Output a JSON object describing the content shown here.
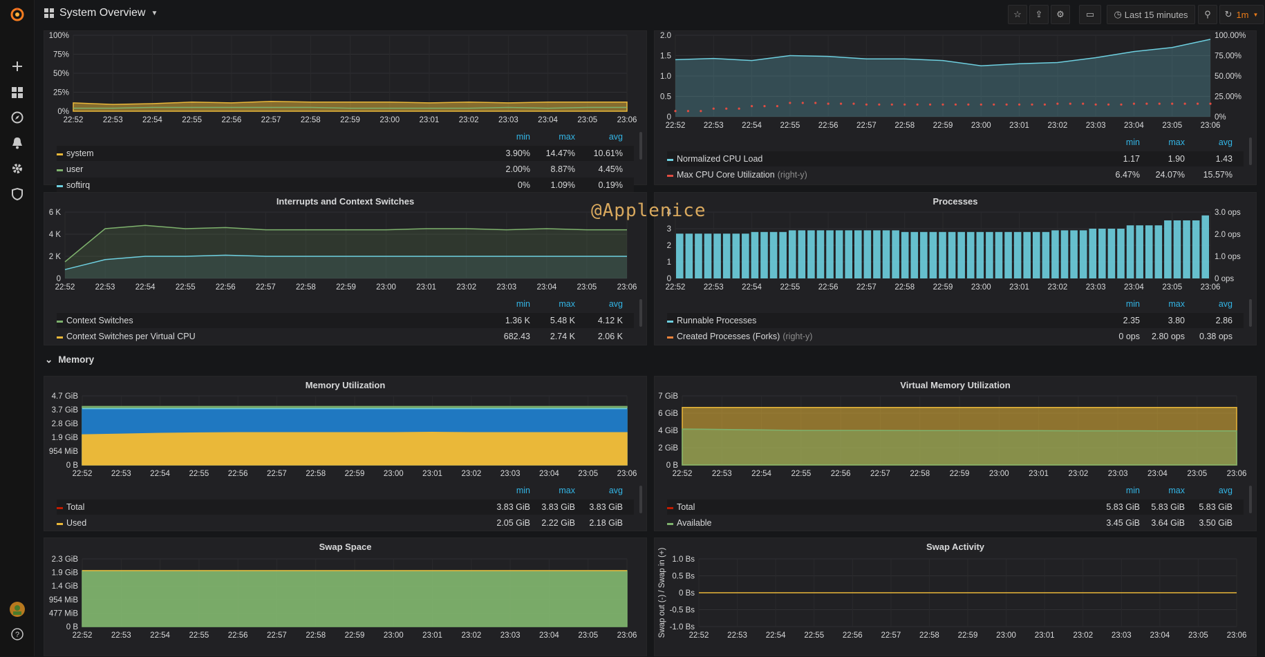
{
  "dashboard": {
    "title": "System Overview"
  },
  "toolbar": {
    "time_range": "Last 15 minutes",
    "refresh": "1m"
  },
  "watermark": "@Applenice",
  "row": {
    "memory": "Memory"
  },
  "ticks": [
    "22:52",
    "22:53",
    "22:54",
    "22:55",
    "22:56",
    "22:57",
    "22:58",
    "22:59",
    "23:00",
    "23:01",
    "23:02",
    "23:03",
    "23:04",
    "23:05",
    "23:06"
  ],
  "headers": {
    "min": "min",
    "max": "max",
    "avg": "avg"
  },
  "panels": {
    "cpu": {
      "title": "",
      "yticks": [
        "100%",
        "75%",
        "50%",
        "25%",
        "0%"
      ],
      "legend": [
        {
          "name": "system",
          "right": "",
          "color": "#eab839",
          "min": "3.90%",
          "max": "14.47%",
          "avg": "10.61%"
        },
        {
          "name": "user",
          "right": "",
          "color": "#7eb26d",
          "min": "2.00%",
          "max": "8.87%",
          "avg": "4.45%"
        },
        {
          "name": "softirq",
          "right": "",
          "color": "#6ed0e0",
          "min": "0%",
          "max": "1.09%",
          "avg": "0.19%"
        }
      ]
    },
    "load": {
      "title": "",
      "yticks": [
        "2.0",
        "1.5",
        "1.0",
        "0.5",
        "0"
      ],
      "y2ticks": [
        "100.00%",
        "75.00%",
        "50.00%",
        "25.00%",
        "0%"
      ],
      "legend": [
        {
          "name": "Normalized CPU Load",
          "right": "",
          "color": "#6ed0e0",
          "min": "1.17",
          "max": "1.90",
          "avg": "1.43"
        },
        {
          "name": "Max CPU Core Utilization",
          "right": "(right-y)",
          "color": "#e24d42",
          "min": "6.47%",
          "max": "24.07%",
          "avg": "15.57%"
        }
      ]
    },
    "interrupts": {
      "title": "Interrupts and Context Switches",
      "yticks": [
        "6 K",
        "4 K",
        "2 K",
        "0"
      ],
      "legend": [
        {
          "name": "Context Switches",
          "right": "",
          "color": "#7eb26d",
          "min": "1.36 K",
          "max": "5.48 K",
          "avg": "4.12 K"
        },
        {
          "name": "Context Switches per Virtual CPU",
          "right": "",
          "color": "#eab839",
          "min": "682.43",
          "max": "2.74 K",
          "avg": "2.06 K"
        }
      ]
    },
    "processes": {
      "title": "Processes",
      "yticks": [
        "4",
        "3",
        "2",
        "1",
        "0"
      ],
      "y2ticks": [
        "3.0 ops",
        "2.0 ops",
        "1.0 ops",
        "0 ops"
      ],
      "legend": [
        {
          "name": "Runnable Processes",
          "right": "",
          "color": "#6ed0e0",
          "min": "2.35",
          "max": "3.80",
          "avg": "2.86"
        },
        {
          "name": "Created Processes (Forks)",
          "right": "(right-y)",
          "color": "#ef843c",
          "min": "0 ops",
          "max": "2.80 ops",
          "avg": "0.38 ops"
        }
      ]
    },
    "mem": {
      "title": "Memory Utilization",
      "yticks": [
        "4.7 GiB",
        "3.7 GiB",
        "2.8 GiB",
        "1.9 GiB",
        "954 MiB",
        "0 B"
      ],
      "legend": [
        {
          "name": "Total",
          "right": "",
          "color": "#bf1b00",
          "min": "3.83 GiB",
          "max": "3.83 GiB",
          "avg": "3.83 GiB"
        },
        {
          "name": "Used",
          "right": "",
          "color": "#eab839",
          "min": "2.05 GiB",
          "max": "2.22 GiB",
          "avg": "2.18 GiB"
        }
      ]
    },
    "vmem": {
      "title": "Virtual Memory Utilization",
      "yticks": [
        "7 GiB",
        "6 GiB",
        "4 GiB",
        "2 GiB",
        "0 B"
      ],
      "legend": [
        {
          "name": "Total",
          "right": "",
          "color": "#bf1b00",
          "min": "5.83 GiB",
          "max": "5.83 GiB",
          "avg": "5.83 GiB"
        },
        {
          "name": "Available",
          "right": "",
          "color": "#7eb26d",
          "min": "3.45 GiB",
          "max": "3.64 GiB",
          "avg": "3.50 GiB"
        }
      ]
    },
    "swap": {
      "title": "Swap Space",
      "yticks": [
        "2.3 GiB",
        "1.9 GiB",
        "1.4 GiB",
        "954 MiB",
        "477 MiB",
        "0 B"
      ]
    },
    "swapact": {
      "title": "Swap Activity",
      "yticks": [
        "1.0 Bs",
        "0.5 Bs",
        "0 Bs",
        "-0.5 Bs",
        "-1.0 Bs"
      ],
      "ylabel": "Swap out (-) / Swap in (+)"
    }
  },
  "chart_data": [
    {
      "type": "area",
      "title": "",
      "ylim": [
        0,
        100
      ],
      "series": [
        {
          "name": "system",
          "values": [
            11,
            9,
            10,
            12,
            11,
            13,
            12,
            12,
            12,
            11,
            12,
            11,
            12,
            12,
            12
          ]
        },
        {
          "name": "user",
          "values": [
            4,
            4,
            5,
            5,
            5,
            5,
            5,
            4,
            4,
            4,
            4,
            5,
            4,
            5,
            5
          ]
        }
      ]
    },
    {
      "type": "line",
      "title": "",
      "ylim": [
        0,
        2
      ],
      "series": [
        {
          "name": "Normalized CPU Load",
          "values": [
            1.4,
            1.43,
            1.38,
            1.5,
            1.48,
            1.42,
            1.42,
            1.38,
            1.25,
            1.3,
            1.33,
            1.45,
            1.6,
            1.7,
            1.9
          ]
        },
        {
          "name": "Max CPU Core Utilization",
          "values": [
            7,
            10,
            13,
            17,
            16,
            15,
            15,
            15,
            15,
            15,
            16,
            15,
            16,
            16,
            16
          ]
        }
      ]
    },
    {
      "type": "line",
      "title": "Interrupts and Context Switches",
      "ylim": [
        0,
        6000
      ],
      "series": [
        {
          "name": "Context Switches",
          "values": [
            1500,
            4500,
            4800,
            4500,
            4600,
            4400,
            4400,
            4400,
            4400,
            4500,
            4500,
            4400,
            4500,
            4400,
            4400
          ]
        },
        {
          "name": "Context Switches per Virtual CPU",
          "values": [
            800,
            1700,
            2000,
            2000,
            2100,
            2000,
            2000,
            2000,
            2000,
            2000,
            2000,
            2000,
            2000,
            2000,
            2000
          ]
        }
      ]
    },
    {
      "type": "bar",
      "title": "Processes",
      "ylim": [
        0,
        4
      ],
      "series": [
        {
          "name": "Runnable Processes",
          "values": [
            2.7,
            2.7,
            2.8,
            2.9,
            2.9,
            2.9,
            2.8,
            2.8,
            2.8,
            2.8,
            2.9,
            3.0,
            3.2,
            3.5,
            3.8
          ]
        }
      ]
    },
    {
      "type": "area",
      "title": "Memory Utilization",
      "ylim": [
        0,
        4.7
      ],
      "series": [
        {
          "name": "Total",
          "values": [
            3.83,
            3.83,
            3.83,
            3.83,
            3.83,
            3.83,
            3.83,
            3.83,
            3.83,
            3.83,
            3.83,
            3.83,
            3.83,
            3.83,
            3.83
          ]
        },
        {
          "name": "Used",
          "values": [
            2.05,
            2.1,
            2.15,
            2.18,
            2.2,
            2.2,
            2.2,
            2.2,
            2.2,
            2.22,
            2.2,
            2.2,
            2.2,
            2.2,
            2.2
          ]
        }
      ]
    },
    {
      "type": "area",
      "title": "Virtual Memory Utilization",
      "ylim": [
        0,
        7
      ],
      "series": [
        {
          "name": "Total",
          "values": [
            5.83,
            5.83,
            5.83,
            5.83,
            5.83,
            5.83,
            5.83,
            5.83,
            5.83,
            5.83,
            5.83,
            5.83,
            5.83,
            5.83,
            5.83
          ]
        },
        {
          "name": "Available",
          "values": [
            3.64,
            3.6,
            3.55,
            3.5,
            3.5,
            3.5,
            3.48,
            3.48,
            3.47,
            3.47,
            3.46,
            3.46,
            3.45,
            3.45,
            3.45
          ]
        }
      ]
    },
    {
      "type": "area",
      "title": "Swap Space",
      "ylim": [
        0,
        2.3
      ],
      "series": [
        {
          "name": "",
          "values": [
            1.9,
            1.9,
            1.9,
            1.9,
            1.9,
            1.9,
            1.9,
            1.9,
            1.9,
            1.9,
            1.9,
            1.9,
            1.9,
            1.9,
            1.9
          ]
        }
      ]
    },
    {
      "type": "line",
      "title": "Swap Activity",
      "ylim": [
        -1,
        1
      ],
      "series": [
        {
          "name": "",
          "values": [
            0,
            0,
            0,
            0,
            0,
            0,
            0,
            0,
            0,
            0,
            0,
            0,
            0,
            0,
            0
          ]
        }
      ]
    }
  ]
}
